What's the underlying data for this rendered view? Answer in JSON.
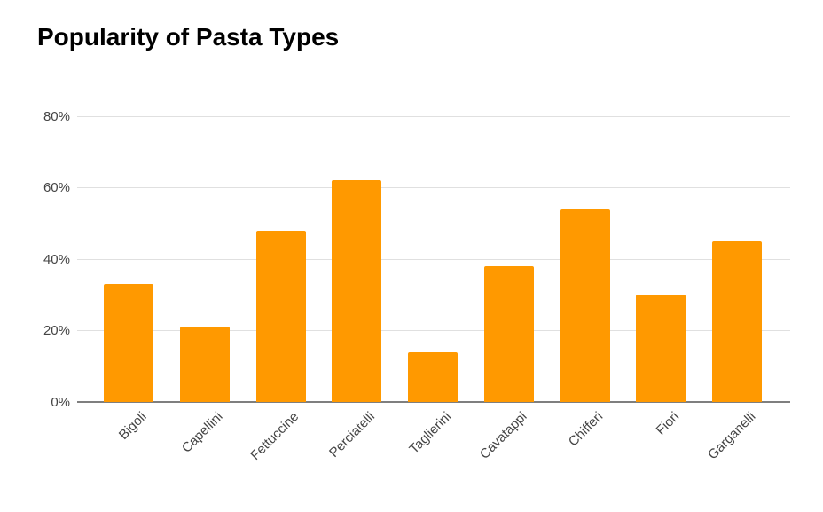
{
  "chart_data": {
    "type": "bar",
    "title": "Popularity of Pasta Types",
    "categories": [
      "Bigoli",
      "Capellini",
      "Fettuccine",
      "Perciatelli",
      "Taglierini",
      "Cavatappi",
      "Chifferi",
      "Fiori",
      "Garganelli"
    ],
    "values": [
      33,
      21,
      48,
      62,
      14,
      38,
      54,
      30,
      45
    ],
    "unit": "%",
    "xlabel": "",
    "ylabel": "",
    "y_tick_labels": [
      "0%",
      "20%",
      "40%",
      "60%",
      "80%"
    ],
    "y_tick_values": [
      0,
      20,
      40,
      60,
      80
    ],
    "ylim": [
      0,
      80
    ],
    "grid": true,
    "legend": "none",
    "colors": {
      "bar": "#FF9900",
      "gridline": "#e0e0e0",
      "axis_baseline": "#7f7f7f",
      "axis_label": "#444444",
      "title": "#000000",
      "background": "#ffffff"
    }
  }
}
